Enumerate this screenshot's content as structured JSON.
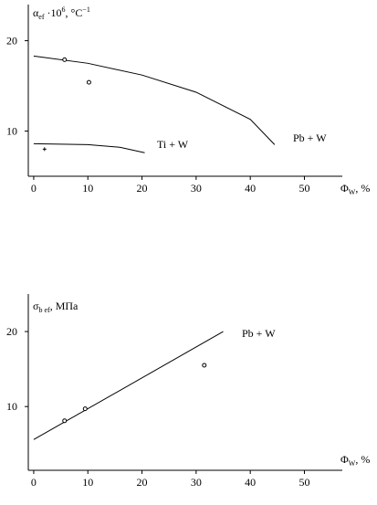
{
  "chart_data": [
    {
      "type": "line",
      "ylabel": {
        "base": "α",
        "sub": "ef",
        "mid": " ·10",
        "sup": "6",
        "unit": ", °C",
        "unit_sup": "−1"
      },
      "xlabel": {
        "base": "Φ",
        "sub": "W",
        "unit": ", %"
      },
      "xlim": [
        -1,
        57
      ],
      "ylim": [
        5,
        24
      ],
      "xticks": [
        0,
        10,
        20,
        30,
        40,
        50
      ],
      "yticks": [
        10,
        20
      ],
      "series": [
        {
          "name": "Pb + W",
          "curve": [
            [
              0,
              18.3
            ],
            [
              10,
              17.5
            ],
            [
              20,
              16.2
            ],
            [
              30,
              14.3
            ],
            [
              40,
              11.3
            ],
            [
              44.5,
              8.5
            ]
          ],
          "points": [
            [
              5.7,
              17.9
            ],
            [
              10.2,
              15.4
            ]
          ],
          "marker": "circle"
        },
        {
          "name": "Ti + W",
          "curve": [
            [
              0,
              8.6
            ],
            [
              10,
              8.5
            ],
            [
              16,
              8.2
            ],
            [
              20.5,
              7.6
            ]
          ],
          "points": [
            [
              2,
              8
            ]
          ],
          "marker": "plus"
        }
      ]
    },
    {
      "type": "line",
      "ylabel": {
        "base": "σ",
        "sub": "b ef",
        "unit": ", МПа"
      },
      "xlabel": {
        "base": "Φ",
        "sub": "W",
        "unit": ", %"
      },
      "xlim": [
        -1,
        57
      ],
      "ylim": [
        1.5,
        25
      ],
      "xticks": [
        0,
        10,
        20,
        30,
        40,
        50
      ],
      "yticks": [
        10,
        20
      ],
      "series": [
        {
          "name": "Pb + W",
          "curve": [
            [
              0,
              5.6
            ],
            [
              35,
              20
            ]
          ],
          "points": [
            [
              5.7,
              8.1
            ],
            [
              9.5,
              9.7
            ],
            [
              31.5,
              15.5
            ]
          ],
          "marker": "circle"
        }
      ]
    }
  ]
}
